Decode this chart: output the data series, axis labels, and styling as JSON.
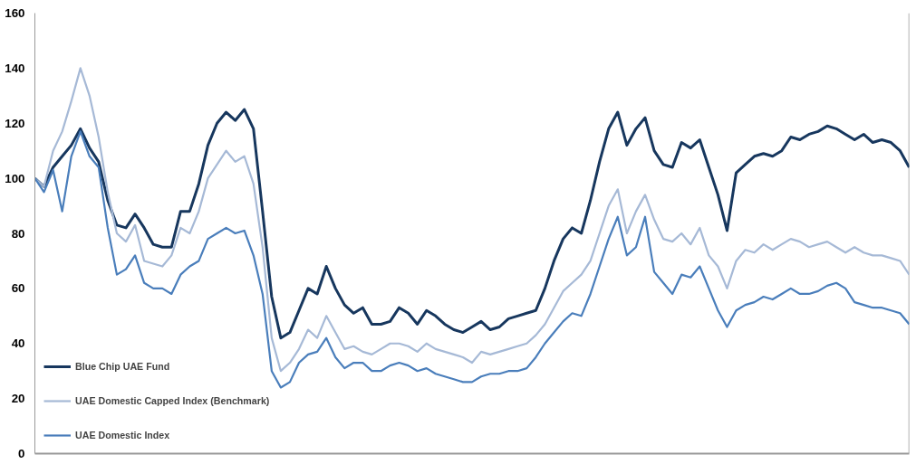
{
  "chart_data": {
    "type": "line",
    "categories": [
      null,
      null,
      null,
      null,
      null,
      null,
      null,
      null,
      null,
      null,
      null,
      null,
      null,
      null,
      null,
      null,
      null,
      null,
      null,
      null,
      null,
      null,
      null,
      null,
      null,
      null,
      null,
      null,
      null,
      null,
      null,
      null,
      null,
      null,
      null,
      null,
      null,
      null,
      null,
      null,
      null,
      null,
      null,
      null,
      null,
      null,
      null,
      null,
      null,
      null,
      null,
      null,
      null,
      null,
      null,
      null,
      null,
      null,
      null,
      null,
      null,
      null,
      null,
      null,
      null,
      null,
      null,
      null,
      null,
      null,
      null,
      null,
      null,
      null,
      null,
      null,
      null,
      null,
      null,
      null,
      null,
      null,
      null,
      null,
      null,
      null,
      null,
      null,
      null,
      null,
      null,
      null,
      null,
      null,
      null,
      null,
      null
    ],
    "series": [
      {
        "name": "Blue Chip UAE Fund",
        "color": "#17375e",
        "values": [
          100,
          97,
          104,
          108,
          112,
          118,
          111,
          106,
          92,
          83,
          82,
          87,
          82,
          76,
          75,
          75,
          88,
          88,
          98,
          112,
          120,
          124,
          121,
          125,
          118,
          88,
          57,
          42,
          44,
          52,
          60,
          58,
          68,
          60,
          54,
          51,
          53,
          47,
          47,
          48,
          53,
          51,
          47,
          52,
          50,
          47,
          45,
          44,
          46,
          48,
          45,
          46,
          49,
          50,
          51,
          52,
          60,
          70,
          78,
          82,
          80,
          92,
          106,
          118,
          124,
          112,
          118,
          122,
          110,
          105,
          104,
          113,
          111,
          114,
          104,
          94,
          81,
          102,
          105,
          108,
          109,
          108,
          110,
          115,
          114,
          116,
          117,
          119,
          118,
          116,
          114,
          116,
          113,
          114,
          113,
          110,
          104
        ]
      },
      {
        "name": "UAE Domestic Capped Index (Benchmark)",
        "color": "#a6b9d6",
        "values": [
          100,
          97,
          110,
          117,
          128,
          140,
          130,
          115,
          95,
          80,
          77,
          83,
          70,
          69,
          68,
          72,
          82,
          80,
          88,
          100,
          105,
          110,
          106,
          108,
          98,
          75,
          42,
          30,
          33,
          38,
          45,
          42,
          50,
          44,
          38,
          39,
          37,
          36,
          38,
          40,
          40,
          39,
          37,
          40,
          38,
          37,
          36,
          35,
          33,
          37,
          36,
          37,
          38,
          39,
          40,
          43,
          47,
          53,
          59,
          62,
          65,
          70,
          80,
          90,
          96,
          80,
          88,
          94,
          85,
          78,
          77,
          80,
          76,
          82,
          72,
          68,
          60,
          70,
          74,
          73,
          76,
          74,
          76,
          78,
          77,
          75,
          76,
          77,
          75,
          73,
          75,
          73,
          72,
          72,
          71,
          70,
          65
        ]
      },
      {
        "name": "UAE Domestic Index",
        "color": "#4a7ebb",
        "values": [
          100,
          95,
          103,
          88,
          108,
          117,
          108,
          104,
          82,
          65,
          67,
          72,
          62,
          60,
          60,
          58,
          65,
          68,
          70,
          78,
          80,
          82,
          80,
          81,
          72,
          58,
          30,
          24,
          26,
          33,
          36,
          37,
          42,
          35,
          31,
          33,
          33,
          30,
          30,
          32,
          33,
          32,
          30,
          31,
          29,
          28,
          27,
          26,
          26,
          28,
          29,
          29,
          30,
          30,
          31,
          35,
          40,
          44,
          48,
          51,
          50,
          58,
          68,
          78,
          86,
          72,
          75,
          86,
          66,
          62,
          58,
          65,
          64,
          68,
          60,
          52,
          46,
          52,
          54,
          55,
          57,
          56,
          58,
          60,
          58,
          58,
          59,
          61,
          62,
          60,
          55,
          54,
          53,
          53,
          52,
          51,
          47
        ]
      }
    ],
    "ylim": [
      0,
      160
    ],
    "yticks": [
      0,
      20,
      40,
      60,
      80,
      100,
      120,
      140,
      160
    ],
    "legend": "bottom left",
    "tick_labels": "y",
    "marker": "none",
    "line_style": "solid"
  }
}
